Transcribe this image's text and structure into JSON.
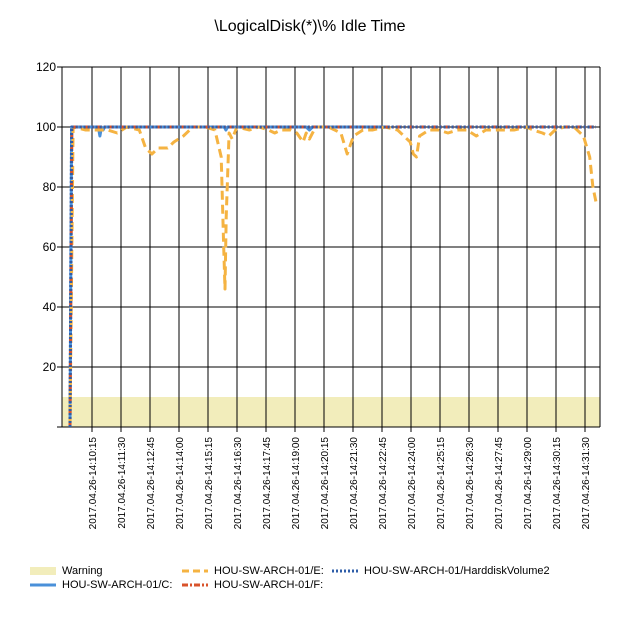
{
  "chart_data": {
    "type": "line",
    "title": "\\LogicalDisk(*)\\% Idle Time",
    "xlabel": "",
    "ylabel": "",
    "ylim": [
      0,
      120
    ],
    "yticks": [
      0,
      20,
      40,
      60,
      80,
      100,
      120
    ],
    "ytick_labels": [
      "",
      "20",
      "40",
      "60",
      "80",
      "100",
      "120"
    ],
    "grid": true,
    "legend_position": "bottom",
    "x_labels": [
      "2017.04.26-14:10:15",
      "2017.04.26-14:11:30",
      "2017.04.26-14:12:45",
      "2017.04.26-14:14:00",
      "2017.04.26-14:15:15",
      "2017.04.26-14:16:30",
      "2017.04.26-14:17:45",
      "2017.04.26-14:19:00",
      "2017.04.26-14:20:15",
      "2017.04.26-14:21:30",
      "2017.04.26-14:22:45",
      "2017.04.26-14:24:00",
      "2017.04.26-14:25:15",
      "2017.04.26-14:26:30",
      "2017.04.26-14:27:45",
      "2017.04.26-14:29:00",
      "2017.04.26-14:30:15",
      "2017.04.26-14:31:30"
    ],
    "warning_band": {
      "name": "Warning",
      "from": 0,
      "to": 10,
      "color": "#f2edbb"
    },
    "series": [
      {
        "name": "HOU-SW-ARCH-01/C:",
        "color": "#4a90d9",
        "style": "solid",
        "points": [
          [
            0,
            0
          ],
          [
            0.5,
            100
          ],
          [
            9,
            100
          ],
          [
            9.5,
            97
          ],
          [
            10,
            100
          ],
          [
            10.5,
            99
          ],
          [
            11,
            100
          ],
          [
            20,
            100
          ],
          [
            30,
            100
          ],
          [
            35,
            100
          ],
          [
            40,
            100
          ],
          [
            49,
            100
          ],
          [
            49.5,
            99
          ],
          [
            50,
            100
          ],
          [
            60,
            100
          ],
          [
            70,
            100
          ],
          [
            75,
            100
          ],
          [
            76,
            99
          ],
          [
            77,
            100
          ],
          [
            80,
            100
          ],
          [
            90,
            100
          ],
          [
            100,
            100
          ]
        ]
      },
      {
        "name": "HOU-SW-ARCH-01/E:",
        "color": "#f5b342",
        "style": "dashed",
        "points": [
          [
            0,
            0
          ],
          [
            1,
            100
          ],
          [
            5,
            99
          ],
          [
            12,
            99
          ],
          [
            15,
            98
          ],
          [
            18,
            100
          ],
          [
            22,
            99
          ],
          [
            24,
            93
          ],
          [
            26,
            91
          ],
          [
            28,
            93
          ],
          [
            31,
            93
          ],
          [
            33,
            95
          ],
          [
            36,
            97
          ],
          [
            39,
            100
          ],
          [
            43,
            100
          ],
          [
            46,
            99
          ],
          [
            48,
            90
          ],
          [
            48.8,
            60
          ],
          [
            49.2,
            46
          ],
          [
            49.6,
            70
          ],
          [
            50.5,
            98
          ],
          [
            51.5,
            96
          ],
          [
            53,
            100
          ],
          [
            57,
            99
          ],
          [
            60,
            100
          ],
          [
            63,
            99
          ],
          [
            65,
            98
          ],
          [
            67,
            99
          ],
          [
            70,
            99
          ],
          [
            72,
            98
          ],
          [
            74,
            95
          ],
          [
            75,
            98
          ],
          [
            76,
            96
          ],
          [
            78,
            100
          ],
          [
            82,
            100
          ],
          [
            86,
            98
          ],
          [
            88,
            91
          ],
          [
            90,
            97
          ],
          [
            93,
            99
          ],
          [
            96,
            99
          ],
          [
            100,
            100
          ],
          [
            104,
            99
          ],
          [
            108,
            95
          ],
          [
            109,
            91
          ],
          [
            110,
            90
          ],
          [
            111,
            97
          ],
          [
            114,
            99
          ],
          [
            117,
            99
          ],
          [
            120,
            98
          ],
          [
            123,
            99
          ],
          [
            126,
            99
          ],
          [
            129,
            97
          ],
          [
            132,
            99
          ],
          [
            135,
            99
          ],
          [
            138,
            99
          ],
          [
            141,
            99
          ],
          [
            145,
            100
          ],
          [
            147,
            99
          ],
          [
            150,
            98
          ],
          [
            152,
            97
          ],
          [
            154,
            99
          ],
          [
            157,
            100
          ],
          [
            160,
            100
          ],
          [
            163,
            97
          ],
          [
            165,
            90
          ],
          [
            166,
            80
          ],
          [
            167,
            75
          ]
        ]
      },
      {
        "name": "HOU-SW-ARCH-01/F:",
        "color": "#d9532b",
        "style": "dashdot",
        "points": [
          [
            0,
            0
          ],
          [
            0.6,
            100
          ],
          [
            100,
            100
          ],
          [
            167,
            100
          ]
        ]
      },
      {
        "name": "HOU-SW-ARCH-01/HarddiskVolume2",
        "color": "#2e5da8",
        "style": "dotted",
        "points": [
          [
            0,
            0
          ],
          [
            0.5,
            100
          ],
          [
            100,
            100
          ],
          [
            167,
            100
          ]
        ]
      }
    ],
    "x_domain": [
      0,
      167
    ],
    "x_label_positions": [
      4,
      14,
      24,
      34,
      44,
      54,
      64,
      74,
      84,
      94,
      104,
      114,
      124,
      134,
      144,
      154,
      164,
      174
    ]
  },
  "legend": {
    "warning": "Warning",
    "c": "HOU-SW-ARCH-01/C:",
    "e": "HOU-SW-ARCH-01/E:",
    "f": "HOU-SW-ARCH-01/F:",
    "hv2": "HOU-SW-ARCH-01/HarddiskVolume2"
  }
}
